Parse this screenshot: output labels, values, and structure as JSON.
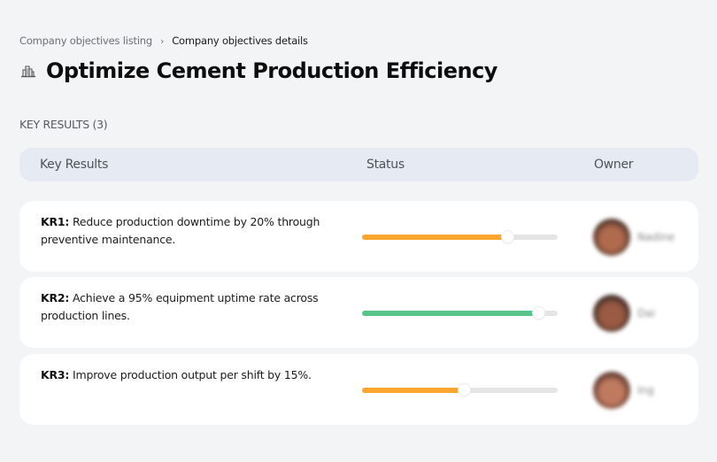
{
  "breadcrumb": {
    "items": [
      {
        "label": "Company objectives listing",
        "current": false
      },
      {
        "label": "Company objectives details",
        "current": true
      }
    ],
    "separator": "›"
  },
  "header": {
    "icon": "building-chart-icon",
    "title": "Optimize Cement Production Efficiency"
  },
  "key_results": {
    "section_label": "KEY RESULTS (3)",
    "columns": [
      "Key Results",
      "Status",
      "Owner"
    ],
    "rows": [
      {
        "id": "KR1:",
        "text": "Reduce production downtime by 20% through preventive maintenance.",
        "progress": 74,
        "progress_color": "#fba62f",
        "owner": {
          "name": "Nadine",
          "avatar_colors": [
            "#b06a4e",
            "#3a2a22"
          ]
        }
      },
      {
        "id": "KR2:",
        "text": "Achieve a 95% equipment uptime rate across production lines.",
        "progress": 90,
        "progress_color": "#58c48a",
        "owner": {
          "name": "Dai",
          "avatar_colors": [
            "#9a5a44",
            "#2c2220"
          ]
        }
      },
      {
        "id": "KR3:",
        "text": "Improve production output per shift by 15%.",
        "progress": 52,
        "progress_color": "#fba62f",
        "owner": {
          "name": "Ing",
          "avatar_colors": [
            "#c07a60",
            "#4a2a22"
          ]
        }
      }
    ]
  },
  "colors": {
    "background": "#f3f4f6",
    "header_band": "#e6eaf2",
    "card": "#ffffff",
    "track": "#e5e5e5"
  }
}
